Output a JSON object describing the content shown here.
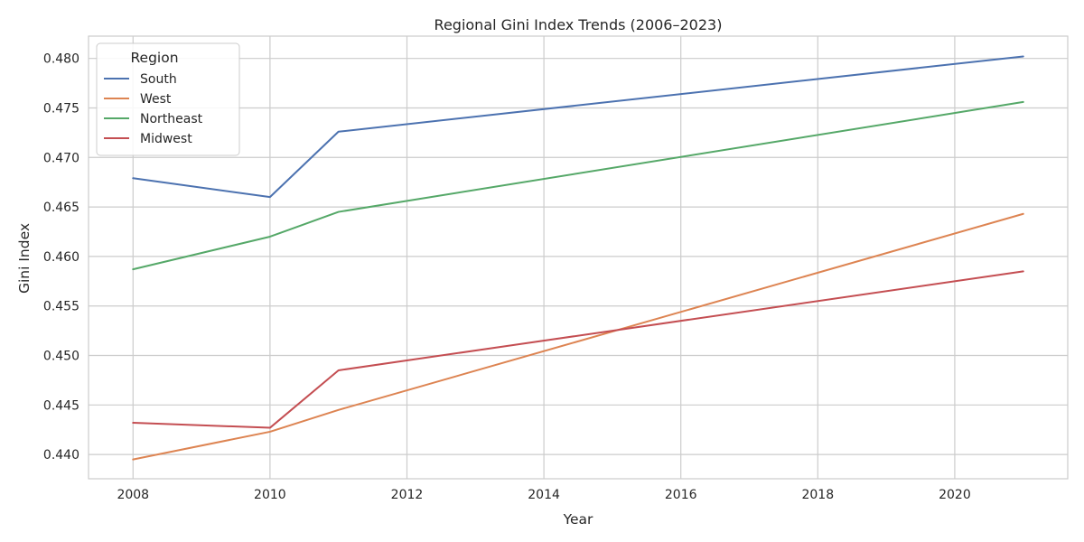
{
  "chart_data": {
    "type": "line",
    "title": "Regional Gini Index Trends (2006–2023)",
    "xlabel": "Year",
    "ylabel": "Gini Index",
    "x_ticks": [
      2008,
      2010,
      2012,
      2014,
      2016,
      2018,
      2020
    ],
    "x_tick_labels": [
      "2008",
      "2010",
      "2012",
      "2014",
      "2016",
      "2018",
      "2020"
    ],
    "y_ticks": [
      0.44,
      0.445,
      0.45,
      0.455,
      0.46,
      0.465,
      0.47,
      0.475,
      0.48
    ],
    "y_tick_labels": [
      "0.440",
      "0.445",
      "0.450",
      "0.455",
      "0.460",
      "0.465",
      "0.470",
      "0.475",
      "0.480"
    ],
    "xlim": [
      2007.35,
      2021.65
    ],
    "ylim": [
      0.43755,
      0.48225
    ],
    "grid": true,
    "legend": {
      "title": "Region",
      "position": "top-left"
    },
    "x": [
      2008,
      2010,
      2011,
      2021
    ],
    "series": [
      {
        "name": "South",
        "color": "#4c72b0",
        "values": [
          0.4679,
          0.466,
          0.4726,
          0.4802
        ]
      },
      {
        "name": "West",
        "color": "#dd8452",
        "values": [
          0.4395,
          0.4423,
          0.4445,
          0.4643
        ]
      },
      {
        "name": "Northeast",
        "color": "#55a868",
        "values": [
          0.4587,
          0.462,
          0.4645,
          0.4756
        ]
      },
      {
        "name": "Midwest",
        "color": "#c44e52",
        "values": [
          0.4432,
          0.4427,
          0.4485,
          0.4585
        ]
      }
    ]
  }
}
